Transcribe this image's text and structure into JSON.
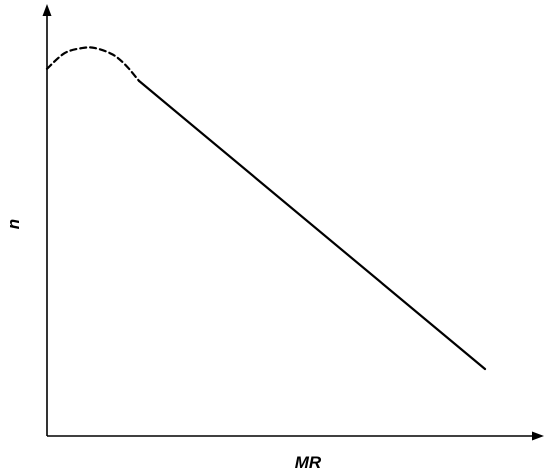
{
  "chart_data": {
    "type": "line",
    "xlabel": "MR",
    "ylabel": "n",
    "grid": false,
    "xlim": [
      0,
      100
    ],
    "ylim": [
      0,
      100
    ],
    "series": [
      {
        "style": "dashed",
        "color": "#000000",
        "x": [
          0,
          4,
          8,
          11,
          15,
          18,
          21
        ],
        "y": [
          85,
          88.6,
          89.8,
          89.8,
          88.3,
          85.8,
          82.2
        ]
      },
      {
        "style": "solid",
        "color": "#000000",
        "x": [
          21,
          100
        ],
        "y": [
          82.2,
          15.5
        ]
      }
    ]
  }
}
